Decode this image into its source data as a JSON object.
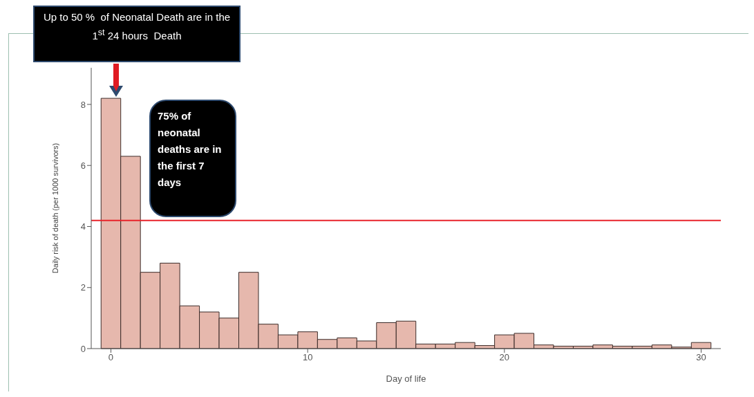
{
  "chart_data": {
    "type": "histogram",
    "xlabel": "Day of life",
    "ylabel": "Daily risk of death (per 1000 survivors)",
    "bins": [
      -0.5,
      0.5,
      1.5,
      2.5,
      3.5,
      4.5,
      5.5,
      6.5,
      7.5,
      8.5,
      9.5,
      10.5,
      11.5,
      12.5,
      13.5,
      14.5,
      15.5,
      16.5,
      17.5,
      18.5,
      19.5,
      20.5,
      21.5,
      22.5,
      23.5,
      24.5,
      25.5,
      26.5,
      27.5,
      28.5,
      29.5,
      30.5
    ],
    "values": [
      8.2,
      6.3,
      2.5,
      2.8,
      1.4,
      1.2,
      1.0,
      2.5,
      0.8,
      0.45,
      0.55,
      0.3,
      0.35,
      0.25,
      0.85,
      0.9,
      0.15,
      0.15,
      0.2,
      0.1,
      0.45,
      0.5,
      0.12,
      0.08,
      0.08,
      0.12,
      0.08,
      0.08,
      0.12,
      0.05,
      0.2
    ],
    "color": "#e6b8ad",
    "xlim": [
      -1,
      31
    ],
    "xticks": [
      0,
      10,
      20,
      30
    ],
    "ylim": [
      0,
      9.2
    ],
    "yticks": [
      0,
      2,
      4,
      6,
      8
    ],
    "ref_lines": [
      {
        "axis": "y",
        "value": 4.2,
        "color": "#e8232a"
      }
    ],
    "annotations": [
      "Up to 50 %  of Neonatal Death are in the 1$^{st}$ 24 hours  Death",
      "75% of neonatal deaths are in the first 7 days"
    ]
  }
}
